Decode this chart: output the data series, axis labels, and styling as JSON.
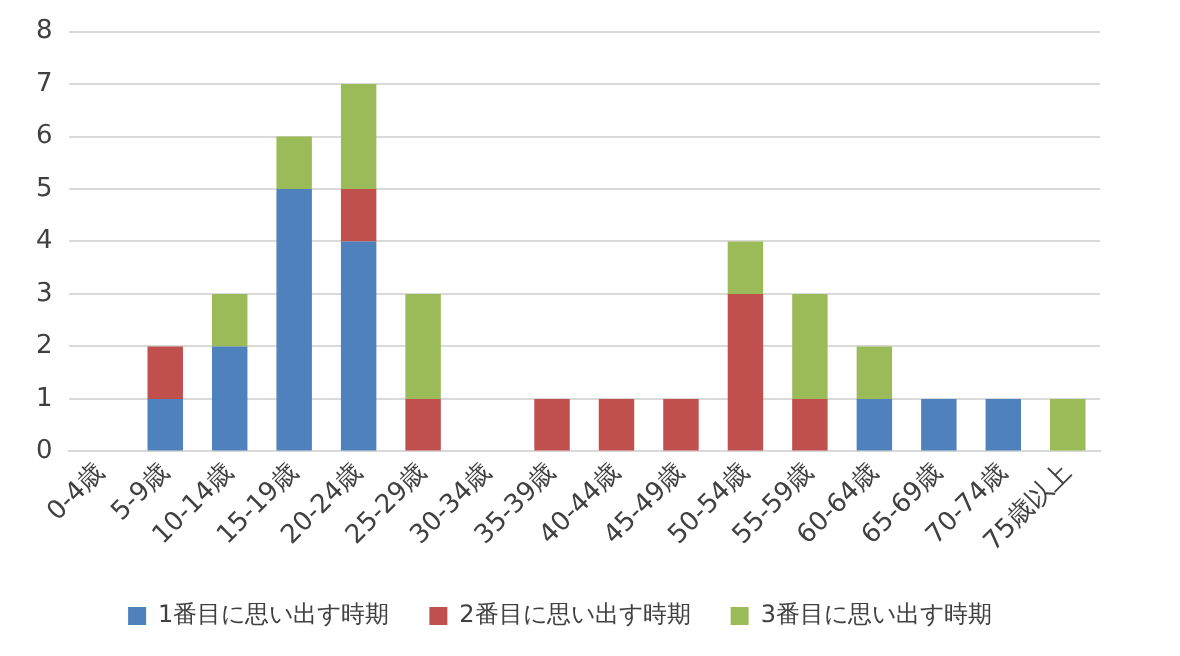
{
  "chart_data": {
    "type": "bar",
    "stacked": true,
    "categories": [
      "0-4歳",
      "5-9歳",
      "10-14歳",
      "15-19歳",
      "20-24歳",
      "25-29歳",
      "30-34歳",
      "35-39歳",
      "40-44歳",
      "45-49歳",
      "50-54歳",
      "55-59歳",
      "60-64歳",
      "65-69歳",
      "70-74歳",
      "75歳以上"
    ],
    "series": [
      {
        "name": "1番目に思い出す時期",
        "color": "#4f81bd",
        "values": [
          0,
          1,
          2,
          5,
          4,
          0,
          0,
          0,
          0,
          0,
          0,
          0,
          1,
          1,
          1,
          0
        ]
      },
      {
        "name": "2番目に思い出す時期",
        "color": "#c0504d",
        "values": [
          0,
          1,
          0,
          0,
          1,
          1,
          0,
          1,
          1,
          1,
          3,
          1,
          0,
          0,
          0,
          0
        ]
      },
      {
        "name": "3番目に思い出す時期",
        "color": "#9bbb59",
        "values": [
          0,
          0,
          1,
          1,
          2,
          2,
          0,
          0,
          0,
          0,
          1,
          2,
          1,
          0,
          0,
          1
        ]
      }
    ],
    "ylim": [
      0,
      8
    ],
    "yticks": [
      0,
      1,
      2,
      3,
      4,
      5,
      6,
      7,
      8
    ],
    "grid": "y",
    "legend": "bottom"
  }
}
